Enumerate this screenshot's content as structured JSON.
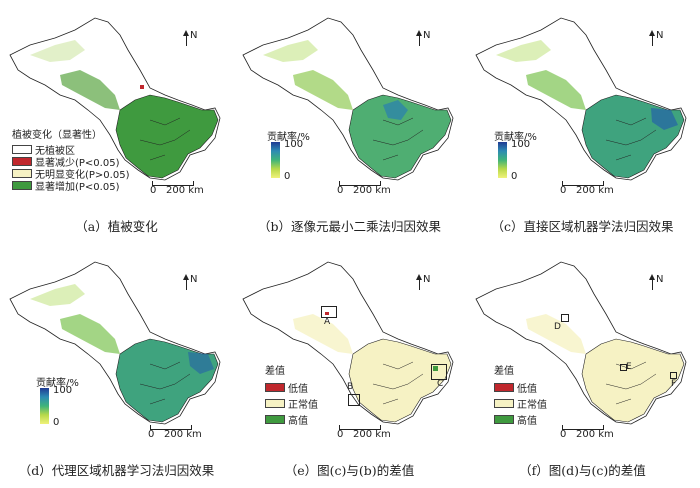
{
  "panels": [
    {
      "id": "a",
      "caption": "（a）植被变化",
      "legend": {
        "title": "植被变化（显著性）",
        "items": [
          {
            "label": "无植被区",
            "color": "#ffffff"
          },
          {
            "label": "显著减少(P<0.05)",
            "color": "#c0272d"
          },
          {
            "label": "无明显变化(P>0.05)",
            "color": "#f6f2c4"
          },
          {
            "label": "显著增加(P<0.05)",
            "color": "#3f9a3f"
          }
        ]
      }
    },
    {
      "id": "b",
      "caption": "（b）逐像元最小二乘法归因效果",
      "colorbar": {
        "title": "贡献率/%",
        "max": "100",
        "min": "0"
      }
    },
    {
      "id": "c",
      "caption": "（c）直接区域机器学法归因效果",
      "colorbar": {
        "title": "贡献率/%",
        "max": "100",
        "min": "0"
      }
    },
    {
      "id": "d",
      "caption": "（d）代理区域机器学习法归因效果",
      "colorbar": {
        "title": "贡献率/%",
        "max": "100",
        "min": "0"
      }
    },
    {
      "id": "e",
      "caption": "（e）图(c)与(b)的差值",
      "legend": {
        "title": "差值",
        "items": [
          {
            "label": "低值",
            "color": "#c0272d"
          },
          {
            "label": "正常值",
            "color": "#f6f2c4"
          },
          {
            "label": "高值",
            "color": "#3f9a3f"
          }
        ]
      },
      "boxes": [
        "A",
        "B",
        "C"
      ]
    },
    {
      "id": "f",
      "caption": "（f）图(d)与(c)的差值",
      "legend": {
        "title": "差值",
        "items": [
          {
            "label": "低值",
            "color": "#c0272d"
          },
          {
            "label": "正常值",
            "color": "#f6f2c4"
          },
          {
            "label": "高值",
            "color": "#3f9a3f"
          }
        ]
      },
      "boxes": [
        "D",
        "E",
        "F"
      ]
    }
  ],
  "north_label": "N",
  "scale": {
    "zero": "0",
    "distance": "200 km"
  },
  "colors": {
    "outline": "#222222",
    "veg_green": "#3f9a3f",
    "normal_yellow": "#f6f2c4",
    "low_red": "#c0272d"
  }
}
